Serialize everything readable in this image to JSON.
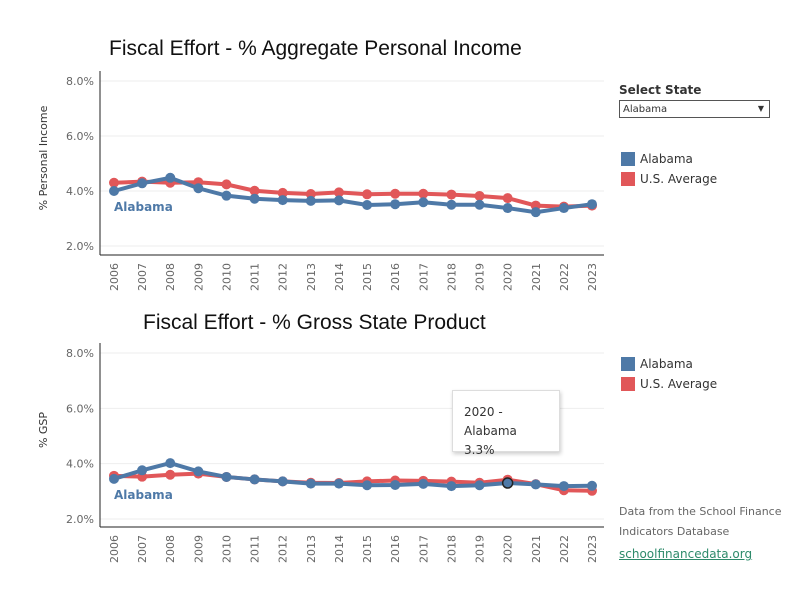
{
  "select_state": {
    "label": "Select State",
    "value": "Alabama"
  },
  "colors": {
    "state": "#4e79a7",
    "us": "#e15759"
  },
  "source": {
    "line1": "Data from the School Finance",
    "line2": "Indicators Database",
    "link": "schoolfinancedata.org"
  },
  "tooltip": {
    "title": "2020 - Alabama",
    "value": "3.3%"
  },
  "chart_data": [
    {
      "type": "line",
      "title": "Fiscal Effort - % Aggregate Personal Income",
      "ylabel": "% Personal Income",
      "ylim": [
        2,
        8
      ],
      "yticks": [
        "2.0%",
        "4.0%",
        "6.0%",
        "8.0%"
      ],
      "grid": true,
      "legend": "right",
      "point_label": "Alabama",
      "x": [
        "2006",
        "2007",
        "2008",
        "2009",
        "2010",
        "2011",
        "2012",
        "2013",
        "2014",
        "2015",
        "2016",
        "2017",
        "2018",
        "2019",
        "2020",
        "2021",
        "2022",
        "2023"
      ],
      "series": [
        {
          "name": "U.S. Average",
          "values": [
            4.3,
            4.34,
            4.3,
            4.32,
            4.24,
            4.01,
            3.93,
            3.89,
            3.95,
            3.88,
            3.9,
            3.9,
            3.87,
            3.82,
            3.74,
            3.47,
            3.43,
            3.47
          ]
        },
        {
          "name": "Alabama",
          "values": [
            4.0,
            4.28,
            4.48,
            4.1,
            3.83,
            3.72,
            3.67,
            3.64,
            3.66,
            3.49,
            3.52,
            3.59,
            3.5,
            3.5,
            3.38,
            3.23,
            3.38,
            3.52
          ]
        }
      ]
    },
    {
      "type": "line",
      "title": "Fiscal Effort - % Gross State Product",
      "ylabel": "% GSP",
      "ylim": [
        2,
        8
      ],
      "yticks": [
        "2.0%",
        "4.0%",
        "6.0%",
        "8.0%"
      ],
      "grid": true,
      "legend": "right",
      "point_label": "Alabama",
      "x": [
        "2006",
        "2007",
        "2008",
        "2009",
        "2010",
        "2011",
        "2012",
        "2013",
        "2014",
        "2015",
        "2016",
        "2017",
        "2018",
        "2019",
        "2020",
        "2021",
        "2022",
        "2023"
      ],
      "series": [
        {
          "name": "U.S. Average",
          "values": [
            3.56,
            3.53,
            3.6,
            3.64,
            3.52,
            3.43,
            3.36,
            3.31,
            3.3,
            3.36,
            3.39,
            3.38,
            3.35,
            3.31,
            3.42,
            3.26,
            3.04,
            3.02
          ]
        },
        {
          "name": "Alabama",
          "values": [
            3.45,
            3.76,
            4.02,
            3.72,
            3.52,
            3.43,
            3.36,
            3.28,
            3.28,
            3.22,
            3.23,
            3.27,
            3.19,
            3.22,
            3.3,
            3.25,
            3.19,
            3.2
          ]
        }
      ]
    }
  ]
}
